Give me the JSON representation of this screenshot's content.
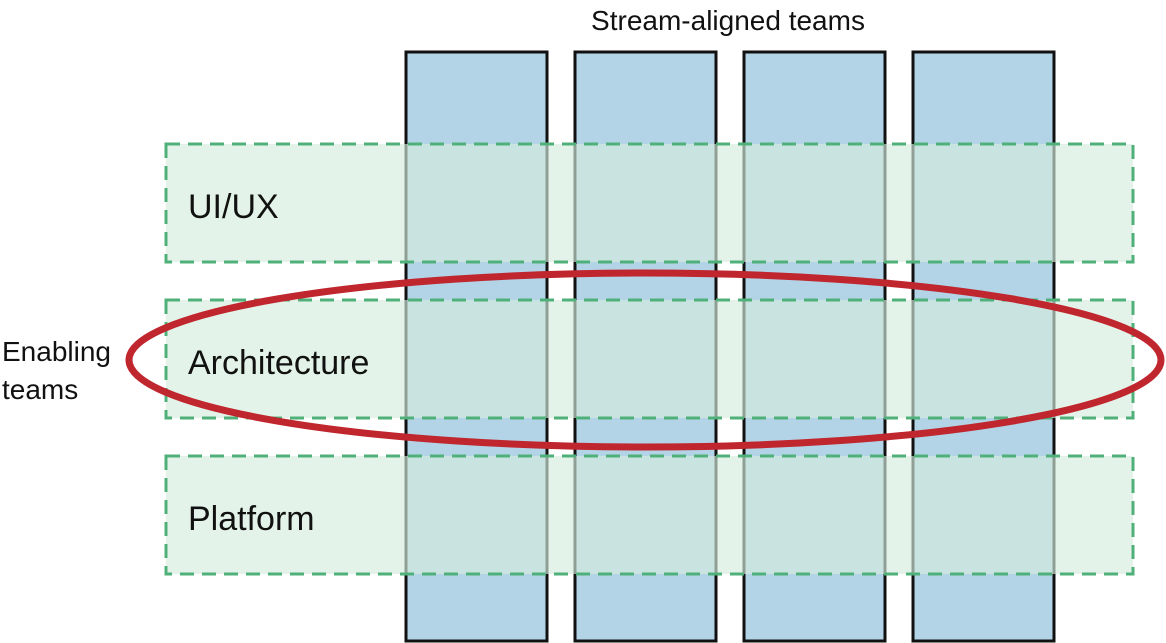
{
  "diagram": {
    "stream_title": "Stream-aligned teams",
    "enabling_label_line1": "Enabling",
    "enabling_label_line2": "teams",
    "stream_team_count": 4,
    "enabling_bands": [
      {
        "label": "UI/UX"
      },
      {
        "label": "Architecture"
      },
      {
        "label": "Platform"
      }
    ],
    "highlighted_band": "Architecture",
    "colors": {
      "stream_fill": "#b3d3e6",
      "stream_stroke": "#111111",
      "band_fill": "#dcefe3",
      "band_stroke": "#4fb07a",
      "highlight_ellipse": "#c0262d"
    }
  }
}
